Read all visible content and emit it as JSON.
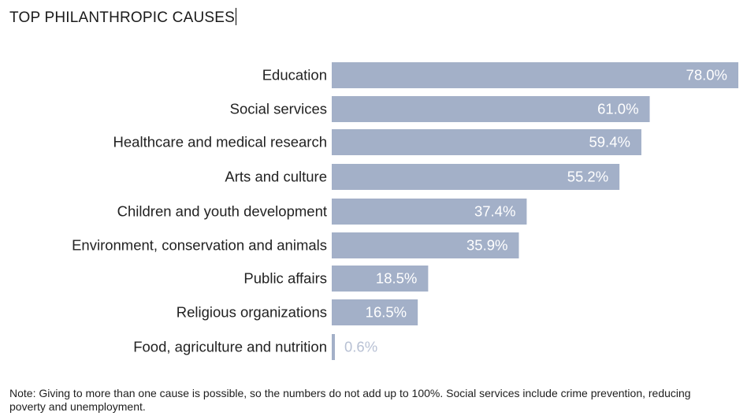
{
  "chart_data": {
    "type": "bar",
    "orientation": "horizontal",
    "title": "TOP PHILANTHROPIC CAUSES",
    "categories": [
      "Education",
      "Social services",
      "Healthcare and medical research",
      "Arts and culture",
      "Children and youth development",
      "Environment, conservation and animals",
      "Public affairs",
      "Religious organizations",
      "Food, agriculture and nutrition"
    ],
    "values": [
      78.0,
      61.0,
      59.4,
      55.2,
      37.4,
      35.9,
      18.5,
      16.5,
      0.6
    ],
    "value_labels": [
      "78.0%",
      "61.0%",
      "59.4%",
      "55.2%",
      "37.4%",
      "35.9%",
      "18.5%",
      "16.5%",
      "0.6%"
    ],
    "xlim": [
      0,
      78
    ],
    "xlabel": "",
    "ylabel": "",
    "grid": false,
    "bar_color": "#a3b0c8",
    "note": "Note: Giving to more than one cause is possible, so the numbers do not add up to 100%. Social services include crime prevention, reducing poverty and unemployment."
  }
}
